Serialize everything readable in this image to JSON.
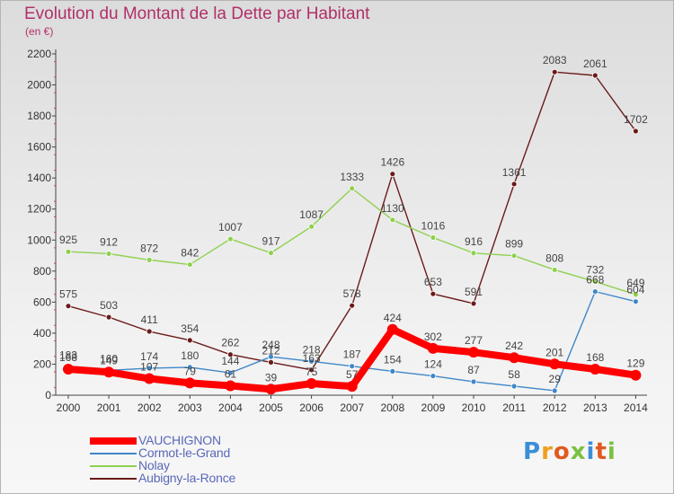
{
  "title": "Evolution du Montant de la Dette par Habitant",
  "unit": "(en €)",
  "logo": "Proxiti",
  "chart_data": {
    "type": "line",
    "x": [
      "2000",
      "2001",
      "2002",
      "2003",
      "2004",
      "2005",
      "2006",
      "2007",
      "2008",
      "2009",
      "2010",
      "2011",
      "2012",
      "2013",
      "2014"
    ],
    "ylim": [
      0,
      2200
    ],
    "yticks": [
      0,
      200,
      400,
      600,
      800,
      1000,
      1200,
      1400,
      1600,
      1800,
      2000,
      2200
    ],
    "grid": false,
    "legend_position": "bottom-left",
    "series": [
      {
        "name": "VAUCHIGNON",
        "color": "#ff0000",
        "values": [
          168,
          149,
          107,
          79,
          61,
          39,
          75,
          57,
          424,
          302,
          277,
          242,
          201,
          168,
          129
        ]
      },
      {
        "name": "Cormot-le-Grand",
        "color": "#3f87c8",
        "values": [
          183,
          160,
          174,
          180,
          144,
          248,
          218,
          187,
          154,
          124,
          87,
          58,
          29,
          668,
          604
        ]
      },
      {
        "name": "Nolay",
        "color": "#8fd14f",
        "values": [
          925,
          912,
          872,
          842,
          1007,
          917,
          1087,
          1333,
          1130,
          1016,
          916,
          899,
          808,
          732,
          649
        ]
      },
      {
        "name": "Aubigny-la-Ronce",
        "color": "#6b1a1a",
        "values": [
          575,
          503,
          411,
          354,
          262,
          212,
          163,
          578,
          1426,
          653,
          591,
          1361,
          2083,
          2061,
          1702
        ]
      }
    ]
  }
}
